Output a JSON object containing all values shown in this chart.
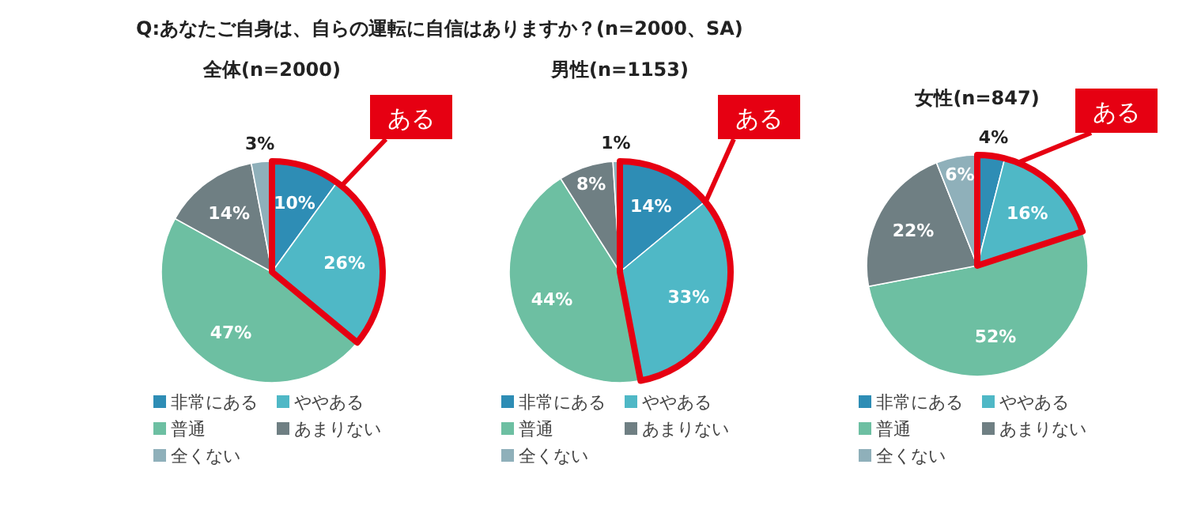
{
  "chart_data": [
    {
      "type": "pie",
      "title": "Q:あなたご自身は、自らの運転に自信はありますか？(n=2000、SA)",
      "subtitle": "全体(n=2000)",
      "categories": [
        "非常にある",
        "ややある",
        "普通",
        "あまりない",
        "全くない"
      ],
      "values": [
        10,
        26,
        47,
        14,
        3
      ],
      "value_labels": [
        "10%",
        "26%",
        "47%",
        "14%",
        "3%"
      ],
      "colors": [
        "#2e8db5",
        "#4fb8c6",
        "#6dbfa2",
        "#6f7f83",
        "#8fb0ba"
      ],
      "legend": "bottom",
      "annotations": [
        "ある"
      ]
    },
    {
      "type": "pie",
      "subtitle": "男性(n=1153)",
      "categories": [
        "非常にある",
        "ややある",
        "普通",
        "あまりない",
        "全くない"
      ],
      "values": [
        14,
        33,
        44,
        8,
        1
      ],
      "value_labels": [
        "14%",
        "33%",
        "44%",
        "8%",
        "1%"
      ],
      "colors": [
        "#2e8db5",
        "#4fb8c6",
        "#6dbfa2",
        "#6f7f83",
        "#8fb0ba"
      ],
      "legend": "bottom",
      "annotations": [
        "ある"
      ]
    },
    {
      "type": "pie",
      "subtitle": "女性(n=847)",
      "categories": [
        "非常にある",
        "ややある",
        "普通",
        "あまりない",
        "全くない"
      ],
      "values": [
        4,
        16,
        52,
        22,
        6
      ],
      "value_labels": [
        "4%",
        "16%",
        "52%",
        "22%",
        "6%"
      ],
      "colors": [
        "#2e8db5",
        "#4fb8c6",
        "#6dbfa2",
        "#6f7f83",
        "#8fb0ba"
      ],
      "legend": "bottom",
      "annotations": [
        "ある"
      ]
    }
  ]
}
